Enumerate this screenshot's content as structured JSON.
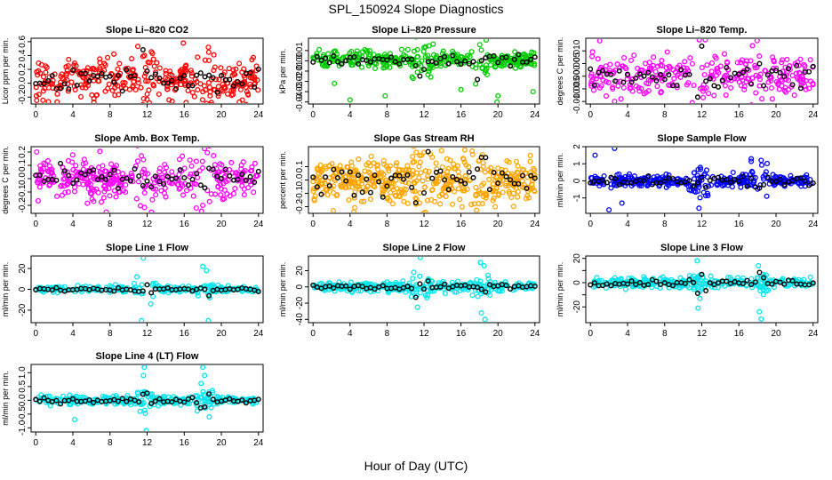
{
  "figure": {
    "title": "SPL_150924  Slope Diagnostics",
    "xlabel": "Hour of Day (UTC)"
  },
  "colors": {
    "red": "#ff0000",
    "green": "#00cc00",
    "magenta": "#ff00ff",
    "orange": "#ffa500",
    "blue": "#0000ff",
    "cyan": "#00e5ee",
    "black": "#000000"
  },
  "chart_data": [
    {
      "type": "scatter",
      "title": "Slope Li–820 CO2",
      "ylabel": "Licor ppm per min.",
      "xlim": [
        -0.5,
        24.5
      ],
      "ylim": [
        -0.3,
        0.65
      ],
      "xticks": [
        0,
        4,
        8,
        12,
        16,
        20,
        24
      ],
      "yticks": [
        -0.2,
        0.0,
        0.2,
        0.4,
        0.6
      ],
      "ytick_labels": [
        "-0.2",
        "0.0",
        "0.2",
        "0.4",
        "0.6"
      ],
      "color": "red",
      "spread": 0.14,
      "center": 0.05,
      "density": 350,
      "outliers": [
        [
          15.9,
          0.58
        ],
        [
          18.6,
          0.52
        ],
        [
          2.3,
          -0.27
        ],
        [
          16.2,
          -0.28
        ]
      ]
    },
    {
      "type": "scatter",
      "title": "Slope Li–820 Pressure",
      "ylabel": "kPa per min.",
      "xlim": [
        -0.5,
        24.5
      ],
      "ylim": [
        -0.042,
        0.022
      ],
      "xticks": [
        0,
        4,
        8,
        12,
        16,
        20,
        24
      ],
      "yticks": [
        -0.04,
        -0.03,
        -0.02,
        -0.01,
        0.0,
        0.01
      ],
      "ytick_labels": [
        "-0.04",
        "-0.03",
        "-0.02",
        "-0.01",
        "0.00",
        "0.01"
      ],
      "color": "green",
      "spread": 0.004,
      "center": 0.001,
      "density": 350,
      "outliers": [
        [
          4.0,
          -0.038
        ],
        [
          7.8,
          -0.034
        ],
        [
          16.0,
          -0.028
        ],
        [
          20.0,
          -0.034
        ],
        [
          23.8,
          -0.03
        ],
        [
          19.9,
          -0.04
        ],
        [
          2.3,
          -0.022
        ]
      ]
    },
    {
      "type": "scatter",
      "title": "Slope Li–820 Temp.",
      "ylabel": "degrees C per min.",
      "xlim": [
        -0.5,
        24.5
      ],
      "ylim": [
        -0.011,
        0.015
      ],
      "xticks": [
        0,
        4,
        8,
        12,
        16,
        20,
        24
      ],
      "yticks": [
        -0.01,
        -0.005,
        0.0,
        0.005,
        0.01
      ],
      "ytick_labels": [
        "-0.010",
        "-0.005",
        "0.000",
        "0.005",
        "0.010"
      ],
      "color": "magenta",
      "spread": 0.004,
      "center": 0.0005,
      "density": 300,
      "outliers": [
        [
          1.0,
          0.014
        ],
        [
          2.6,
          -0.01
        ],
        [
          3.3,
          -0.009
        ],
        [
          19.6,
          -0.009
        ]
      ]
    },
    {
      "type": "scatter",
      "title": "Slope Amb. Box Temp.",
      "ylabel": "degrees C per min.",
      "xlim": [
        -0.5,
        24.5
      ],
      "ylim": [
        -0.26,
        0.24
      ],
      "xticks": [
        0,
        4,
        8,
        12,
        16,
        20,
        24
      ],
      "yticks": [
        -0.2,
        -0.1,
        0.0,
        0.1,
        0.2
      ],
      "ytick_labels": [
        "-0.2",
        "-0.1",
        "0.0",
        "0.1",
        "0.2"
      ],
      "color": "magenta",
      "spread": 0.07,
      "center": 0.0,
      "density": 350,
      "outliers": [
        [
          7.6,
          -0.25
        ],
        [
          17.3,
          -0.22
        ],
        [
          0.1,
          0.2
        ],
        [
          18.0,
          -0.2
        ]
      ]
    },
    {
      "type": "scatter",
      "title": "Slope Gas Stream RH",
      "ylabel": "percent per min.",
      "xlim": [
        -0.5,
        24.5
      ],
      "ylim": [
        -0.25,
        0.25
      ],
      "xticks": [
        0,
        4,
        8,
        12,
        16,
        20,
        24
      ],
      "yticks": [
        -0.2,
        -0.1,
        0.0,
        0.1
      ],
      "ytick_labels": [
        "-0.2",
        "-0.1",
        "0.0",
        "0.1"
      ],
      "color": "orange",
      "spread": 0.08,
      "center": 0.0,
      "density": 500,
      "outliers": [
        [
          2.2,
          -0.23
        ],
        [
          4.4,
          -0.24
        ],
        [
          19.7,
          -0.2
        ],
        [
          13.9,
          0.22
        ]
      ]
    },
    {
      "type": "scatter",
      "title": "Slope Sample Flow",
      "ylabel": "ml/min per min.",
      "xlim": [
        -0.5,
        24.5
      ],
      "ylim": [
        -1.9,
        2.0
      ],
      "xticks": [
        0,
        4,
        8,
        12,
        16,
        20,
        24
      ],
      "yticks": [
        -1,
        0,
        1,
        2
      ],
      "ytick_labels": [
        "-1",
        "0",
        "1",
        "2"
      ],
      "color": "blue",
      "spread": 0.18,
      "center": 0.0,
      "density": 350,
      "outliers": [
        [
          2.0,
          -1.7
        ],
        [
          2.6,
          1.9
        ],
        [
          3.4,
          -1.3
        ],
        [
          0.5,
          1.5
        ],
        [
          11.7,
          -1.6
        ],
        [
          18.4,
          1.2
        ],
        [
          19.0,
          -0.9
        ]
      ]
    },
    {
      "type": "scatter",
      "title": "Slope Line 1 Flow",
      "ylabel": "ml/min per min.",
      "xlim": [
        -0.5,
        24.5
      ],
      "ylim": [
        -32,
        32
      ],
      "xticks": [
        0,
        4,
        8,
        12,
        16,
        20,
        24
      ],
      "yticks": [
        -20,
        0,
        20
      ],
      "ytick_labels": [
        "-20",
        "0",
        "20"
      ],
      "color": "cyan",
      "spread": 1.5,
      "center": 0.0,
      "density": 250,
      "outliers": [
        [
          11.6,
          30
        ],
        [
          11.4,
          -30
        ],
        [
          18.0,
          22
        ],
        [
          18.4,
          18
        ],
        [
          18.6,
          -30
        ],
        [
          10.9,
          12
        ],
        [
          12.4,
          -14
        ]
      ]
    },
    {
      "type": "scatter",
      "title": "Slope Line 2 Flow",
      "ylabel": "ml/min per min.",
      "xlim": [
        -0.5,
        24.5
      ],
      "ylim": [
        -44,
        38
      ],
      "xticks": [
        0,
        4,
        8,
        12,
        16,
        20,
        24
      ],
      "yticks": [
        -40,
        -20,
        0,
        20
      ],
      "ytick_labels": [
        "-40",
        "-20",
        "0",
        "20"
      ],
      "color": "cyan",
      "spread": 3.0,
      "center": 0.0,
      "density": 300,
      "outliers": [
        [
          11.6,
          36
        ],
        [
          11.3,
          -25
        ],
        [
          18.1,
          30
        ],
        [
          18.5,
          26
        ],
        [
          18.6,
          -40
        ],
        [
          18.2,
          -32
        ],
        [
          10.9,
          18
        ]
      ]
    },
    {
      "type": "scatter",
      "title": "Slope Line 3 Flow",
      "ylabel": "ml/min per min.",
      "xlim": [
        -0.5,
        24.5
      ],
      "ylim": [
        -33,
        22
      ],
      "xticks": [
        0,
        4,
        8,
        12,
        16,
        20,
        24
      ],
      "yticks": [
        -20,
        -10,
        0,
        10,
        20
      ],
      "ytick_labels": [
        "-20",
        "",
        "0",
        "",
        "20"
      ],
      "color": "cyan",
      "spread": 2.0,
      "center": 0.0,
      "density": 300,
      "outliers": [
        [
          11.6,
          -21
        ],
        [
          11.5,
          18
        ],
        [
          18.1,
          14
        ],
        [
          18.4,
          -30
        ],
        [
          18.2,
          -24
        ],
        [
          11.8,
          -13
        ]
      ]
    },
    {
      "type": "scatter",
      "title": "Slope Line 4 (LT) Flow",
      "ylabel": "ml/min per min.",
      "xlim": [
        -0.5,
        24.5
      ],
      "ylim": [
        -1.15,
        1.3
      ],
      "xticks": [
        0,
        4,
        8,
        12,
        16,
        20,
        24
      ],
      "yticks": [
        -1.0,
        -0.5,
        0.0,
        0.5,
        1.0
      ],
      "ytick_labels": [
        "-1.0",
        "-0.5",
        "0.0",
        "0.5",
        "1.0"
      ],
      "color": "cyan",
      "spread": 0.08,
      "center": 0.0,
      "density": 300,
      "outliers": [
        [
          11.7,
          1.2
        ],
        [
          11.9,
          -1.1
        ],
        [
          18.0,
          1.2
        ],
        [
          18.2,
          0.9
        ],
        [
          4.2,
          -0.7
        ],
        [
          18.7,
          -0.6
        ],
        [
          11.6,
          0.9
        ]
      ]
    }
  ]
}
